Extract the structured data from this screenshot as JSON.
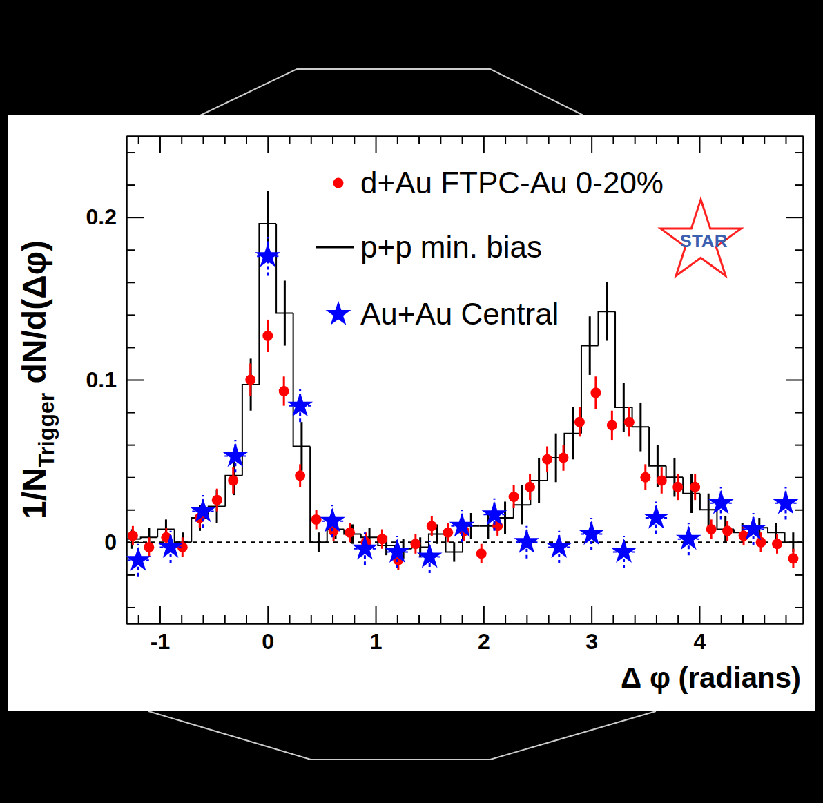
{
  "chart_data": {
    "type": "scatter",
    "xlabel": "Δ φ (radians)",
    "ylabel": [
      {
        "text": "1/N"
      },
      {
        "text": "Trigger",
        "sub": true
      },
      {
        "text": " dN/d(Δφ)"
      }
    ],
    "xlim": [
      -1.31,
      4.96
    ],
    "ylim": [
      -0.05,
      0.25
    ],
    "xticks": [
      -1,
      0,
      1,
      2,
      3,
      4
    ],
    "yticks": [
      0,
      0.1,
      0.2
    ],
    "xminor": [
      -1.2,
      -0.8,
      -0.6,
      -0.4,
      -0.2,
      0.2,
      0.4,
      0.6,
      0.8,
      1.2,
      1.4,
      1.6,
      1.8,
      2.2,
      2.4,
      2.6,
      2.8,
      3.2,
      3.4,
      3.6,
      3.8,
      4.2,
      4.4,
      4.6,
      4.8
    ],
    "yminor": [
      -0.04,
      -0.02,
      0.02,
      0.04,
      0.06,
      0.08,
      0.12,
      0.14,
      0.16,
      0.18,
      0.22,
      0.24
    ],
    "hline": 0,
    "legend": "top-right",
    "logo": "STAR",
    "series": [
      {
        "name": "d+Au FTPC-Au 0-20%",
        "type": "scatter",
        "marker": "circle",
        "line_style": "solid",
        "color": "#ff0000",
        "x": [
          -1.25,
          -1.1,
          -0.94,
          -0.79,
          -0.63,
          -0.47,
          -0.32,
          -0.16,
          0.0,
          0.15,
          0.3,
          0.45,
          0.61,
          0.76,
          0.91,
          1.06,
          1.21,
          1.37,
          1.52,
          1.67,
          1.82,
          1.98,
          2.13,
          2.28,
          2.43,
          2.59,
          2.74,
          2.89,
          3.04,
          3.19,
          3.35,
          3.5,
          3.65,
          3.8,
          3.96,
          4.11,
          4.26,
          4.41,
          4.57,
          4.72,
          4.87
        ],
        "values": [
          0.004,
          -0.003,
          0.003,
          -0.003,
          0.015,
          0.026,
          0.038,
          0.1,
          0.127,
          0.093,
          0.041,
          0.014,
          0.007,
          0.006,
          0.0,
          0.002,
          -0.011,
          -0.001,
          0.01,
          0.006,
          0.007,
          -0.007,
          0.01,
          0.028,
          0.034,
          0.051,
          0.052,
          0.074,
          0.092,
          0.072,
          0.074,
          0.04,
          0.038,
          0.034,
          0.034,
          0.008,
          0.007,
          0.004,
          0.0,
          -0.001,
          -0.01
        ],
        "errors": [
          0.006,
          0.006,
          0.006,
          0.006,
          0.006,
          0.007,
          0.008,
          0.01,
          0.01,
          0.009,
          0.007,
          0.006,
          0.006,
          0.006,
          0.006,
          0.006,
          0.006,
          0.006,
          0.006,
          0.006,
          0.006,
          0.006,
          0.006,
          0.007,
          0.008,
          0.008,
          0.008,
          0.009,
          0.01,
          0.009,
          0.009,
          0.008,
          0.008,
          0.008,
          0.008,
          0.006,
          0.006,
          0.006,
          0.006,
          0.006,
          0.006
        ],
        "x_errors": [
          0.03,
          0.03,
          0.03,
          0.03,
          0.03,
          0.03,
          0.03,
          0.03,
          0.03,
          0.03,
          0.03,
          0.03,
          0.03,
          0.03,
          0.03,
          0.03,
          0.03,
          0.03,
          0.03,
          0.03,
          0.03,
          0.03,
          0.03,
          0.03,
          0.03,
          0.03,
          0.03,
          0.03,
          0.03,
          0.03,
          0.03,
          0.03,
          0.03,
          0.03,
          0.03,
          0.03,
          0.03,
          0.03,
          0.03,
          0.03,
          0.03
        ]
      },
      {
        "name": "p+p min. bias",
        "type": "step",
        "line_style": "solid",
        "color": "#000000",
        "bins": [
          -1.335,
          -1.178,
          -1.021,
          -0.864,
          -0.707,
          -0.55,
          -0.393,
          -0.236,
          -0.079,
          0.079,
          0.236,
          0.393,
          0.55,
          0.707,
          0.864,
          1.021,
          1.178,
          1.335,
          1.492,
          1.649,
          1.806,
          1.963,
          2.121,
          2.278,
          2.435,
          2.592,
          2.749,
          2.906,
          3.063,
          3.22,
          3.377,
          3.534,
          3.691,
          3.848,
          4.006,
          4.163,
          4.32,
          4.477,
          4.634,
          4.791,
          4.948
        ],
        "values": [
          0.002,
          0.003,
          0.008,
          0.0,
          0.015,
          0.022,
          0.041,
          0.097,
          0.196,
          0.141,
          0.059,
          0.0,
          0.008,
          0.005,
          0.003,
          -0.002,
          -0.004,
          -0.003,
          0.005,
          -0.006,
          0.01,
          0.01,
          0.015,
          0.023,
          0.038,
          0.052,
          0.067,
          0.121,
          0.142,
          0.083,
          0.071,
          0.047,
          0.04,
          0.03,
          0.02,
          0.008,
          0.006,
          0.009,
          0.006,
          0.0
        ],
        "errors": [
          0.006,
          0.006,
          0.006,
          0.006,
          0.008,
          0.01,
          0.012,
          0.016,
          0.02,
          0.02,
          0.015,
          0.006,
          0.006,
          0.006,
          0.006,
          0.006,
          0.006,
          0.006,
          0.006,
          0.006,
          0.008,
          0.008,
          0.01,
          0.012,
          0.014,
          0.015,
          0.016,
          0.018,
          0.018,
          0.015,
          0.015,
          0.013,
          0.012,
          0.012,
          0.01,
          0.008,
          0.006,
          0.006,
          0.006,
          0.006
        ]
      },
      {
        "name": "Au+Au Central",
        "type": "scatter",
        "marker": "star",
        "line_style": "dashed",
        "color": "#0000ff",
        "x": [
          -1.2,
          -0.9,
          -0.6,
          -0.3,
          0,
          0.3,
          0.6,
          0.9,
          1.2,
          1.5,
          1.8,
          2.1,
          2.4,
          2.7,
          3.0,
          3.3,
          3.6,
          3.9,
          4.2,
          4.5,
          4.8
        ],
        "values": [
          -0.011,
          -0.003,
          0.019,
          0.053,
          0.176,
          0.084,
          0.013,
          -0.004,
          -0.006,
          -0.009,
          0.01,
          0.017,
          0.0,
          -0.003,
          0.005,
          -0.006,
          0.015,
          0.002,
          0.024,
          0.008,
          0.024
        ],
        "errors": [
          0.01,
          0.01,
          0.01,
          0.01,
          0.012,
          0.01,
          0.01,
          0.01,
          0.01,
          0.01,
          0.01,
          0.01,
          0.01,
          0.01,
          0.01,
          0.01,
          0.01,
          0.01,
          0.01,
          0.01,
          0.01
        ],
        "x_errors": [
          0.1,
          0.1,
          0.1,
          0.1,
          0.1,
          0.1,
          0.1,
          0.1,
          0.1,
          0.1,
          0.1,
          0.1,
          0.1,
          0.1,
          0.1,
          0.1,
          0.1,
          0.1,
          0.1,
          0.1,
          0.1
        ]
      }
    ]
  }
}
